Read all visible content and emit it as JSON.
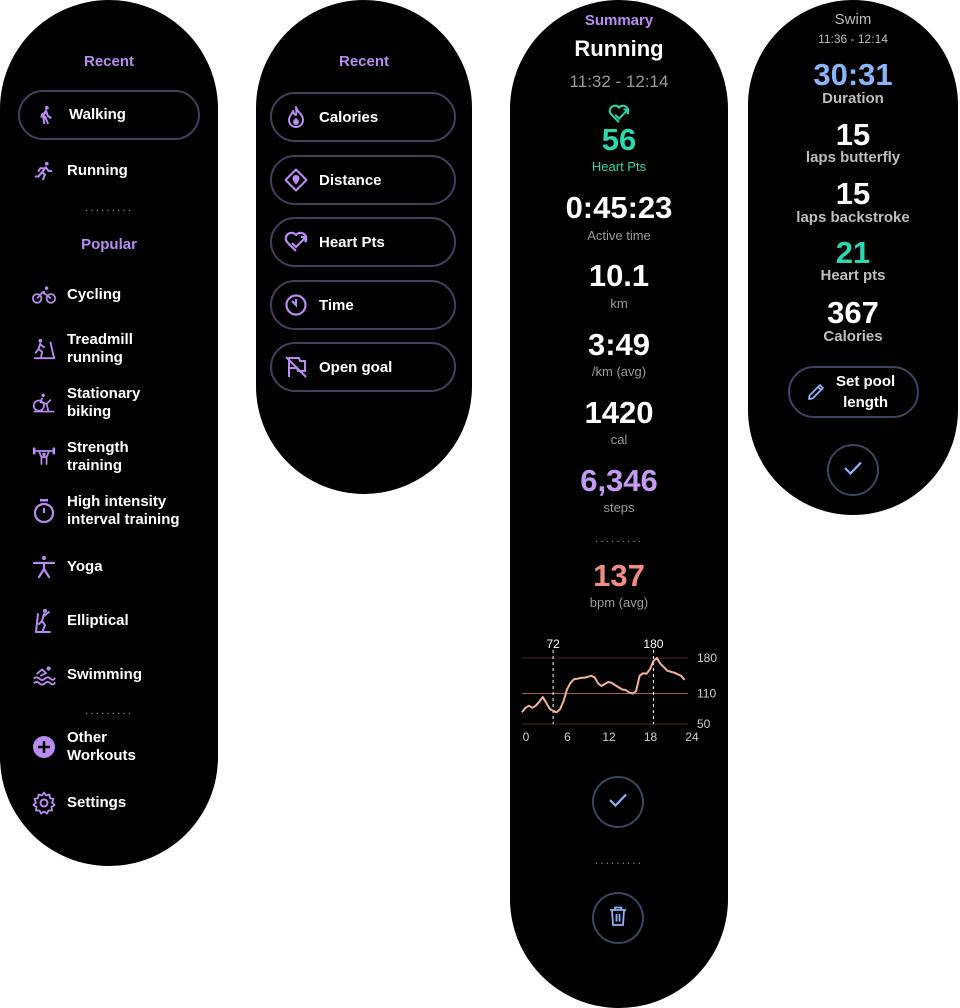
{
  "colors": {
    "accent": "#b98cf2",
    "teal": "#2bd8b0",
    "blue": "#8ab4f8",
    "salmon": "#f28b82",
    "orange": "#f4b393"
  },
  "screen1": {
    "recent_header": "Recent",
    "recent": [
      {
        "label": [
          "Walking"
        ],
        "icon": "walking-icon"
      },
      {
        "label": [
          "Running"
        ],
        "icon": "running-icon"
      }
    ],
    "popular_header": "Popular",
    "popular": [
      {
        "label": [
          "Cycling"
        ],
        "icon": "cycling-icon"
      },
      {
        "label": [
          "Treadmill",
          "running"
        ],
        "icon": "treadmill-icon"
      },
      {
        "label": [
          "Stationary",
          "biking"
        ],
        "icon": "stationary-bike-icon"
      },
      {
        "label": [
          "Strength",
          "training"
        ],
        "icon": "weightlifting-icon"
      },
      {
        "label": [
          "High intensity",
          "interval training"
        ],
        "icon": "timer-icon"
      },
      {
        "label": [
          "Yoga"
        ],
        "icon": "yoga-icon"
      },
      {
        "label": [
          "Elliptical"
        ],
        "icon": "elliptical-icon"
      },
      {
        "label": [
          "Swimming"
        ],
        "icon": "swimming-icon"
      }
    ],
    "other": [
      {
        "label": [
          "Other",
          "Workouts"
        ],
        "icon": "add-circle-icon"
      },
      {
        "label": [
          "Settings"
        ],
        "icon": "gear-icon"
      }
    ]
  },
  "screen2": {
    "header": "Recent",
    "goals": [
      {
        "label": "Calories",
        "icon": "flame-icon"
      },
      {
        "label": "Distance",
        "icon": "location-diamond-icon"
      },
      {
        "label": "Heart Pts",
        "icon": "heart-points-icon"
      },
      {
        "label": "Time",
        "icon": "timer-icon"
      },
      {
        "label": "Open goal",
        "icon": "flag-off-icon"
      }
    ]
  },
  "screen3": {
    "summary_label": "Summary",
    "activity": "Running",
    "time_range": "11:32 - 12:14",
    "heart_pts": {
      "value": "56",
      "label": "Heart Pts"
    },
    "active_time": {
      "value": "0:45:23",
      "label": "Active time"
    },
    "distance": {
      "value": "10.1",
      "label": "km"
    },
    "pace": {
      "value": "3:49",
      "label": "/km (avg)"
    },
    "calories": {
      "value": "1420",
      "label": "cal"
    },
    "steps": {
      "value": "6,346",
      "label": "steps"
    },
    "bpm": {
      "value": "137",
      "label": "bpm (avg)"
    }
  },
  "chart_data": {
    "type": "line",
    "x": [
      0,
      0.5,
      1,
      1.5,
      2,
      2.5,
      3,
      3.5,
      4,
      4.5,
      5,
      5.5,
      6,
      6.5,
      7,
      7.5,
      8,
      8.5,
      9,
      9.5,
      10,
      10.5,
      11,
      11.5,
      12,
      12.5,
      13,
      13.5,
      14,
      14.5,
      15,
      15.5,
      16,
      16.5,
      17,
      17.5,
      18,
      18.5,
      19,
      19.5,
      20,
      20.5,
      21,
      21.5,
      22,
      22.5,
      23,
      23.5
    ],
    "values": [
      73,
      82,
      86,
      82,
      86,
      94,
      103,
      92,
      80,
      76,
      73,
      79,
      95,
      118,
      131,
      138,
      139,
      141,
      141,
      143,
      145,
      142,
      130,
      125,
      129,
      133,
      131,
      126,
      122,
      118,
      117,
      112,
      110,
      115,
      145,
      150,
      149,
      158,
      174,
      180,
      169,
      162,
      155,
      153,
      151,
      148,
      145,
      137
    ],
    "xticks": [
      "0",
      "6",
      "12",
      "18",
      "24"
    ],
    "yticks": [
      "180",
      "110",
      "50"
    ],
    "annotations": [
      {
        "x": 4.5,
        "label": "72"
      },
      {
        "x": 19,
        "label": "180"
      }
    ],
    "xlim": [
      0,
      24
    ],
    "ylim": [
      50,
      180
    ]
  },
  "screen4": {
    "title": "Swim",
    "time_range": "11:36 - 12:14",
    "stats": [
      {
        "value": "30:31",
        "label": "Duration",
        "color": "#8ab4f8"
      },
      {
        "value": "15",
        "label": "laps butterfly",
        "color": "#ffffff"
      },
      {
        "value": "15",
        "label": "laps backstroke",
        "color": "#ffffff"
      },
      {
        "value": "21",
        "label": "Heart pts",
        "color": "#2bd8b0"
      },
      {
        "value": "367",
        "label": "Calories",
        "color": "#ffffff"
      }
    ],
    "pool_button": [
      "Set pool",
      "length"
    ]
  }
}
